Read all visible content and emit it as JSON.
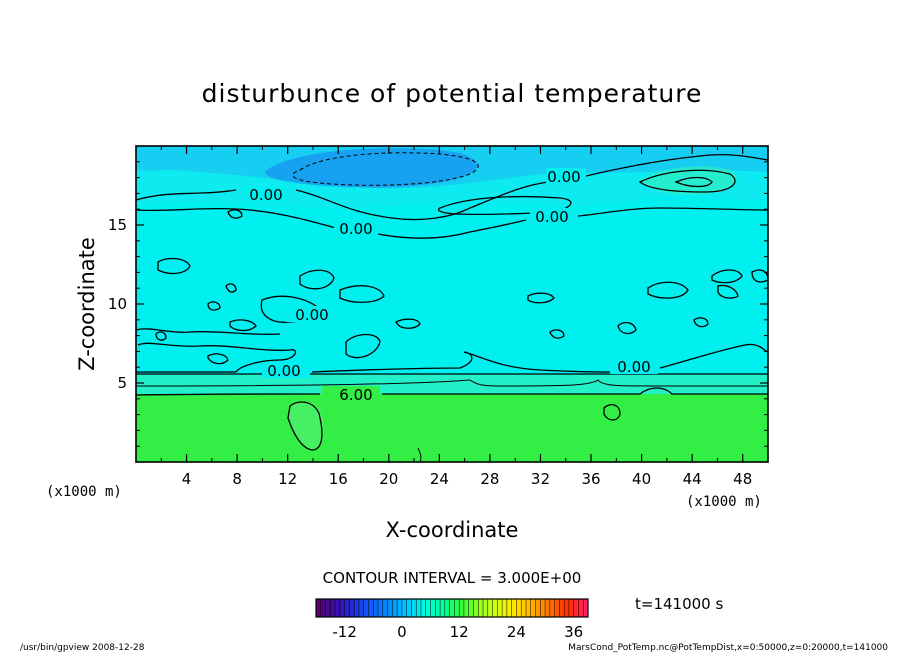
{
  "chart_data": {
    "type": "heatmap",
    "title": "disturbunce of potential temperature",
    "xlabel": "X-coordinate",
    "ylabel": "Z-coordinate",
    "x_unit_left": "(x1000 m)",
    "x_unit_right": "(x1000 m)",
    "xlim": [
      0,
      50
    ],
    "ylim": [
      0,
      20
    ],
    "x_ticks": [
      "4",
      "8",
      "12",
      "16",
      "20",
      "24",
      "28",
      "32",
      "36",
      "40",
      "44",
      "48"
    ],
    "y_ticks": [
      "5",
      "10",
      "15"
    ],
    "contour_labels": [
      "0.00",
      "0.00",
      "0.00",
      "0.00",
      "0.00",
      "0.00",
      "6.00"
    ],
    "contour_interval": "CONTOUR INTERVAL = 3.000E+00",
    "time_label": "t=141000 s",
    "colorbar": {
      "min": -18,
      "max": 39,
      "tick_labels": [
        "-12",
        "0",
        "12",
        "24",
        "36"
      ],
      "tick_values": [
        -12,
        0,
        12,
        24,
        36
      ],
      "colors": [
        "#5a006e",
        "#3a10a8",
        "#2030d8",
        "#1060ff",
        "#0090ff",
        "#00c8ff",
        "#00ffe0",
        "#00ff9a",
        "#30ff40",
        "#90ff20",
        "#d8ff10",
        "#ffe800",
        "#ffb000",
        "#ff7000",
        "#ff3000",
        "#ff2060"
      ]
    },
    "layers": [
      {
        "zrange": [
          0,
          3.5
        ],
        "value": "6",
        "color": "#33ee44"
      },
      {
        "zrange": [
          3.5,
          5.5
        ],
        "value": "3",
        "color": "#22f0c8"
      },
      {
        "zrange": [
          5.5,
          20
        ],
        "value": "0",
        "color": "#00f0f0"
      },
      {
        "zrange": [
          17,
          19.8
        ],
        "value": "-3",
        "color": "#22aaf5"
      }
    ]
  },
  "footer": {
    "left": "/usr/bin/gpview   2008-12-28",
    "right": "MarsCond_PotTemp.nc@PotTempDist,x=0:50000,z=0:20000,t=141000"
  }
}
